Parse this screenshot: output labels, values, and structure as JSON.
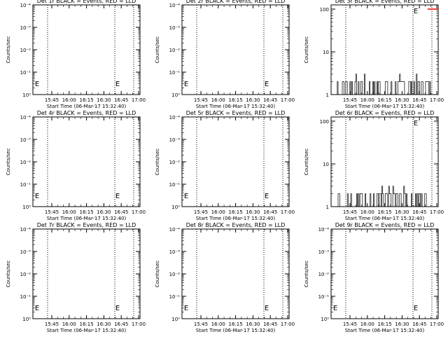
{
  "chart_data": [
    {
      "type": "line",
      "title": "Det 1r BLACK = Events, RED = LLD",
      "xlabel": "Start Time (06-Mar-17 15:32:40)",
      "ylabel": "Counts/sec",
      "yscale": "log",
      "y_tick_labels": [
        "10⁰",
        "10⁻¹",
        "10⁻²",
        "10⁻³",
        "10⁻⁴"
      ],
      "x_tick_labels": [
        "15:45",
        "16:00",
        "16:15",
        "16:30",
        "16:45",
        "17:00"
      ],
      "markers": [
        "E"
      ],
      "series": []
    },
    {
      "type": "line",
      "title": "Det 2r BLACK = Events, RED = LLD",
      "xlabel": "Start Time (06-Mar-17 15:32:40)",
      "ylabel": "Counts/sec",
      "yscale": "log",
      "y_tick_labels": [
        "10⁰",
        "10⁻¹",
        "10⁻²",
        "10⁻³",
        "10⁻⁴"
      ],
      "x_tick_labels": [
        "15:45",
        "16:00",
        "16:15",
        "16:30",
        "16:45",
        "17:00"
      ],
      "markers": [
        "E"
      ],
      "series": []
    },
    {
      "type": "line",
      "title": "Det 3r BLACK = Events, RED = LLD",
      "xlabel": "Start Time (06-Mar-17 15:32:40)",
      "ylabel": "Counts/sec",
      "yscale": "log",
      "y_tick_labels": [
        "1",
        "10",
        "100"
      ],
      "x_tick_labels": [
        "15:45",
        "16:00",
        "16:15",
        "16:30",
        "16:45",
        "17:00"
      ],
      "markers": [
        "E"
      ],
      "series": [
        {
          "color": "#000000",
          "x": [
            0.05,
            0.95
          ],
          "y_min": 1,
          "y_max": 3
        },
        {
          "color": "#ff0000",
          "x": [
            0.9,
            1.0
          ],
          "y_min": 100,
          "y_max": 100
        }
      ]
    },
    {
      "type": "line",
      "title": "Det 4r BLACK = Events, RED = LLD",
      "xlabel": "Start Time (06-Mar-17 15:32:40)",
      "ylabel": "Counts/sec",
      "yscale": "log",
      "y_tick_labels": [
        "10⁰",
        "10⁻¹",
        "10⁻²",
        "10⁻³",
        "10⁻⁴"
      ],
      "x_tick_labels": [
        "15:45",
        "16:00",
        "16:15",
        "16:30",
        "16:45",
        "17:00"
      ],
      "markers": [
        "E"
      ],
      "series": []
    },
    {
      "type": "line",
      "title": "Det 5r BLACK = Events, RED = LLD",
      "xlabel": "Start Time (06-Mar-17 15:32:40)",
      "ylabel": "Counts/sec",
      "yscale": "log",
      "y_tick_labels": [
        "10⁰",
        "10⁻¹",
        "10⁻²",
        "10⁻³",
        "10⁻⁴"
      ],
      "x_tick_labels": [
        "15:45",
        "16:00",
        "16:15",
        "16:30",
        "16:45",
        "17:00"
      ],
      "markers": [
        "E"
      ],
      "series": []
    },
    {
      "type": "line",
      "title": "Det 6r BLACK = Events, RED = LLD",
      "xlabel": "Start Time (06-Mar-17 15:32:40)",
      "ylabel": "Counts/sec",
      "yscale": "log",
      "y_tick_labels": [
        "1",
        "10",
        "100"
      ],
      "x_tick_labels": [
        "15:45",
        "16:00",
        "16:15",
        "16:30",
        "16:45",
        "17:00"
      ],
      "markers": [
        "E"
      ],
      "series": [
        {
          "color": "#000000",
          "x": [
            0.05,
            0.95
          ],
          "y_min": 1,
          "y_max": 3
        }
      ]
    },
    {
      "type": "line",
      "title": "Det 7r BLACK = Events, RED = LLD",
      "xlabel": "Start Time (06-Mar-17 15:32:40)",
      "ylabel": "Counts/sec",
      "yscale": "log",
      "y_tick_labels": [
        "10⁰",
        "10⁻¹",
        "10⁻²",
        "10⁻³",
        "10⁻⁴"
      ],
      "x_tick_labels": [
        "15:45",
        "16:00",
        "16:15",
        "16:30",
        "16:45",
        "17:00"
      ],
      "markers": [
        "E"
      ],
      "series": []
    },
    {
      "type": "line",
      "title": "Det 8r BLACK = Events, RED = LLD",
      "xlabel": "Start Time (06-Mar-17 15:32:40)",
      "ylabel": "Counts/sec",
      "yscale": "log",
      "y_tick_labels": [
        "10⁰",
        "10⁻¹",
        "10⁻²",
        "10⁻³",
        "10⁻⁴"
      ],
      "x_tick_labels": [
        "15:45",
        "16:00",
        "16:15",
        "16:30",
        "16:45",
        "17:00"
      ],
      "markers": [
        "E"
      ],
      "series": []
    },
    {
      "type": "line",
      "title": "Det 9r BLACK = Events, RED = LLD",
      "xlabel": "Start Time (06-Mar-17 15:32:40)",
      "ylabel": "Counts/sec",
      "yscale": "log",
      "y_tick_labels": [
        "10⁰",
        "10⁻¹",
        "10⁻²",
        "10⁻³",
        "10⁻⁴"
      ],
      "x_tick_labels": [
        "15:45",
        "16:00",
        "16:15",
        "16:30",
        "16:45",
        "17:00"
      ],
      "markers": [
        "E"
      ],
      "series": []
    }
  ]
}
